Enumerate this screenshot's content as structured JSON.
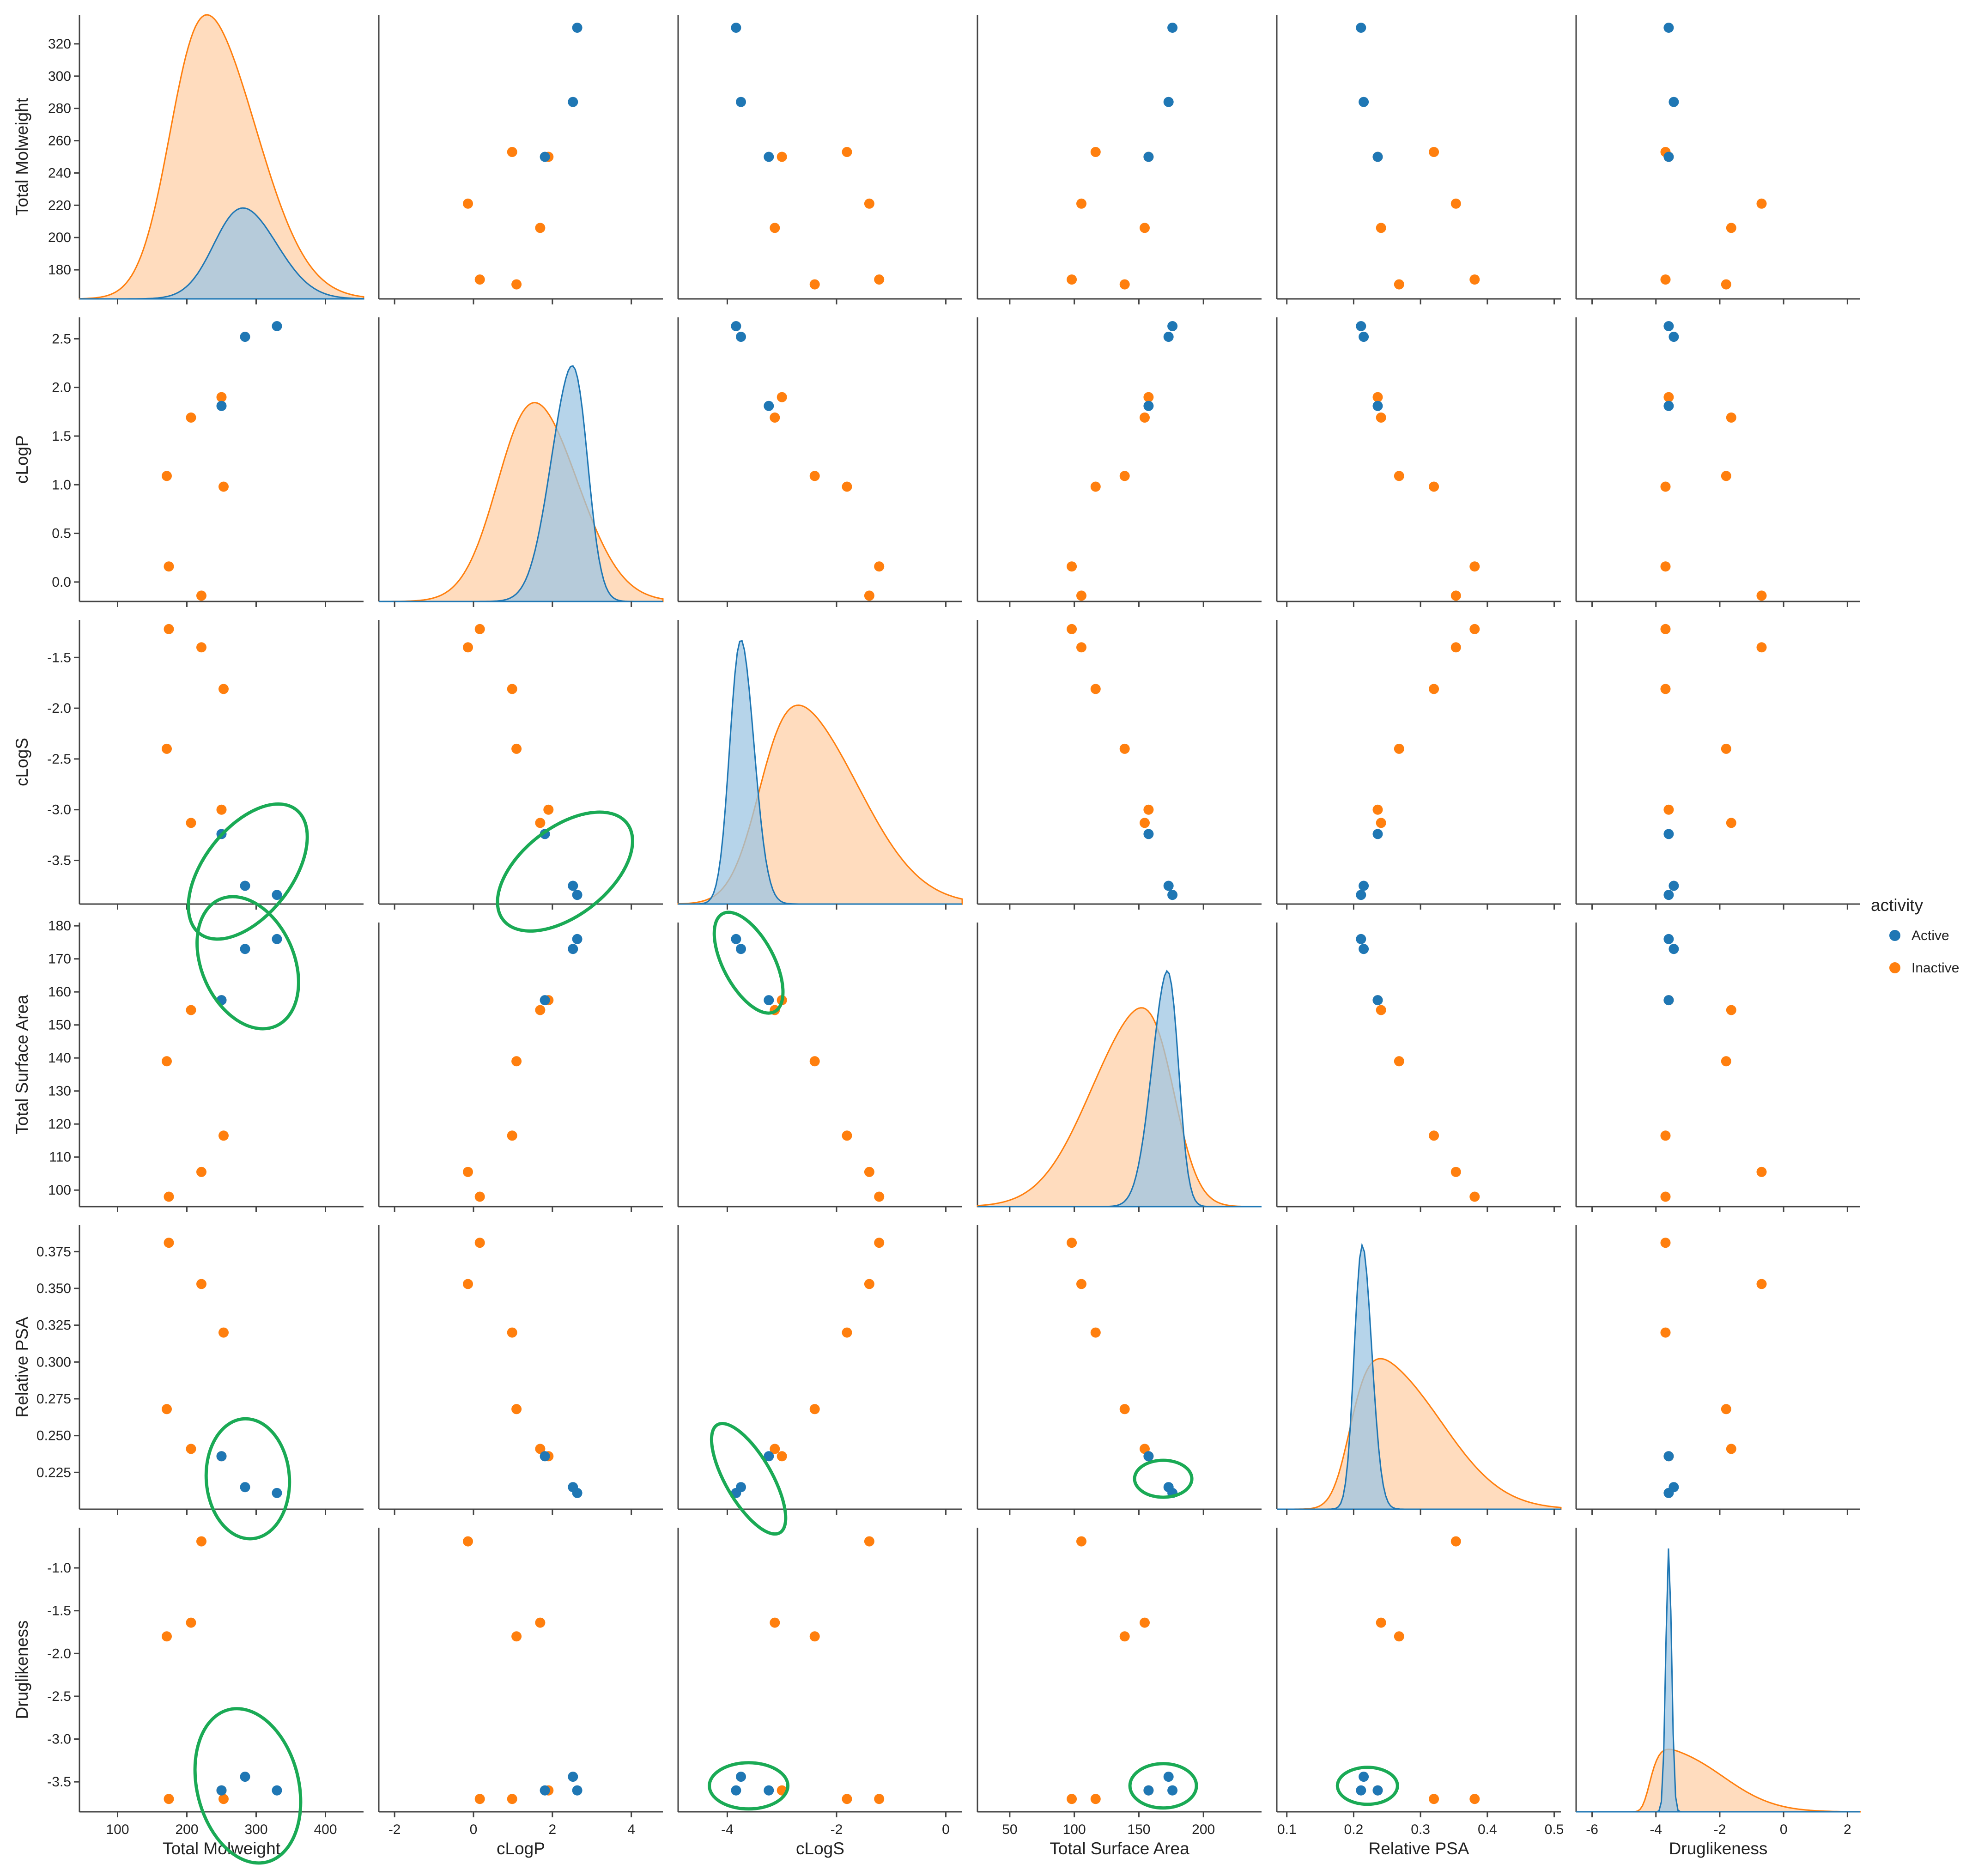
{
  "chart_data": {
    "type": "scatter",
    "variables": [
      "Total Molweight",
      "cLogP",
      "cLogS",
      "Total Surface Area",
      "Relative PSA",
      "Druglikeness"
    ],
    "ranges": [
      [
        45,
        455
      ],
      [
        -2.4,
        4.8
      ],
      [
        -4.9,
        0.3
      ],
      [
        25,
        245
      ],
      [
        0.085,
        0.51
      ],
      [
        -6.5,
        2.4
      ]
    ],
    "ticks": [
      [
        100,
        200,
        300,
        400
      ],
      [
        -2,
        0,
        2,
        4
      ],
      [
        -4,
        -2,
        0
      ],
      [
        50,
        100,
        150,
        200
      ],
      [
        0.1,
        0.2,
        0.3,
        0.4,
        0.5
      ],
      [
        -6,
        -4,
        -2,
        0,
        2
      ]
    ],
    "tick_labels": [
      [
        "100",
        "200",
        "300",
        "400"
      ],
      [
        "-2",
        "0",
        "2",
        "4"
      ],
      [
        "-4",
        "-2",
        "0"
      ],
      [
        "50",
        "100",
        "150",
        "200"
      ],
      [
        "0.1",
        "0.2",
        "0.3",
        "0.4",
        "0.5"
      ],
      [
        "-6",
        "-4",
        "-2",
        "0",
        "2"
      ]
    ],
    "y_ranges": [
      [
        162,
        338
      ],
      [
        -0.2,
        2.72
      ],
      [
        -3.93,
        -1.13
      ],
      [
        95,
        181
      ],
      [
        0.2,
        0.393
      ],
      [
        -3.85,
        -0.53
      ]
    ],
    "y_ticks": [
      [
        180,
        200,
        220,
        240,
        260,
        280,
        300,
        320
      ],
      [
        0.0,
        0.5,
        1.0,
        1.5,
        2.0,
        2.5
      ],
      [
        -3.5,
        -3.0,
        -2.5,
        -2.0,
        -1.5
      ],
      [
        100,
        110,
        120,
        130,
        140,
        150,
        160,
        170,
        180
      ],
      [
        0.225,
        0.25,
        0.275,
        0.3,
        0.325,
        0.35,
        0.375
      ],
      [
        -3.5,
        -3.0,
        -2.5,
        -2.0,
        -1.5,
        -1.0
      ]
    ],
    "y_tick_labels": [
      [
        "180",
        "200",
        "220",
        "240",
        "260",
        "280",
        "300",
        "320"
      ],
      [
        "0.0",
        "0.5",
        "1.0",
        "1.5",
        "2.0",
        "2.5"
      ],
      [
        "-3.5",
        "-3.0",
        "-2.5",
        "-2.0",
        "-1.5"
      ],
      [
        "100",
        "110",
        "120",
        "130",
        "140",
        "150",
        "160",
        "170",
        "180"
      ],
      [
        "0.225",
        "0.250",
        "0.275",
        "0.300",
        "0.325",
        "0.350",
        "0.375"
      ],
      [
        "-3.5",
        "-3.0",
        "-2.5",
        "-2.0",
        "-1.5",
        "-1.0"
      ]
    ],
    "legend": {
      "title": "activity",
      "placement": "right",
      "entries": [
        {
          "name": "Active",
          "color": "#1f77b4"
        },
        {
          "name": "Inactive",
          "color": "#ff7f0e"
        }
      ]
    },
    "series": [
      {
        "name": "Active",
        "color": "#1f77b4",
        "points": [
          [
            330,
            2.63,
            -3.84,
            176,
            0.211,
            -3.6
          ],
          [
            284,
            2.52,
            -3.75,
            173,
            0.215,
            -3.44
          ],
          [
            250,
            1.81,
            -3.24,
            157.5,
            0.236,
            -3.6
          ]
        ]
      },
      {
        "name": "Inactive",
        "color": "#ff7f0e",
        "points": [
          [
            253,
            0.98,
            -1.81,
            116.5,
            0.32,
            -3.7
          ],
          [
            250,
            1.9,
            -3.0,
            157.5,
            0.236,
            -3.6
          ],
          [
            221,
            -0.14,
            -1.4,
            105.5,
            0.353,
            -0.69
          ],
          [
            206,
            1.69,
            -3.13,
            154.5,
            0.241,
            -1.64
          ],
          [
            174,
            0.16,
            -1.22,
            98,
            0.381,
            -3.7
          ],
          [
            171,
            1.09,
            -2.4,
            139,
            0.268,
            -1.8
          ]
        ]
      }
    ],
    "density_peaks": [
      {
        "variable": "Total Molweight",
        "Active": [
          281,
          0.32
        ],
        "Inactive": [
          229,
          1.0
        ]
      },
      {
        "variable": "cLogP",
        "Active": [
          2.5,
          0.83
        ],
        "Inactive": [
          1.55,
          0.7
        ]
      },
      {
        "variable": "cLogS",
        "Active": [
          -3.75,
          0.93
        ],
        "Inactive": [
          -2.7,
          0.7
        ]
      },
      {
        "variable": "Total Surface Area",
        "Active": [
          172,
          0.83
        ],
        "Inactive": [
          152,
          0.7
        ]
      },
      {
        "variable": "Relative PSA",
        "Active": [
          0.213,
          0.93
        ],
        "Inactive": [
          0.24,
          0.53
        ]
      },
      {
        "variable": "Druglikeness",
        "Active": [
          -3.6,
          0.93
        ],
        "Inactive": [
          -3.6,
          0.22
        ]
      }
    ]
  }
}
